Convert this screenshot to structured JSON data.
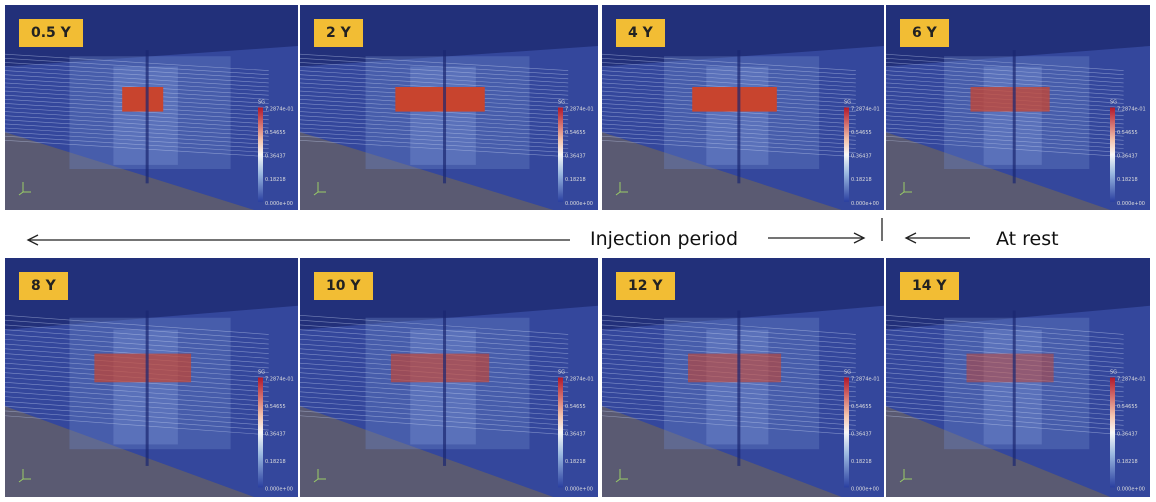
{
  "panels": [
    {
      "label": "0.5 Y"
    },
    {
      "label": "2 Y"
    },
    {
      "label": "4 Y"
    },
    {
      "label": "6 Y"
    },
    {
      "label": "8 Y"
    },
    {
      "label": "10 Y"
    },
    {
      "label": "12 Y"
    },
    {
      "label": "14 Y"
    }
  ],
  "colorbar": {
    "title": "SG",
    "labels": [
      "7.2874e-01",
      "0.54655",
      "0.36437",
      "0.18218",
      "0.000e+00"
    ]
  },
  "timeline": {
    "injection": "Injection period",
    "rest": "At rest"
  }
}
